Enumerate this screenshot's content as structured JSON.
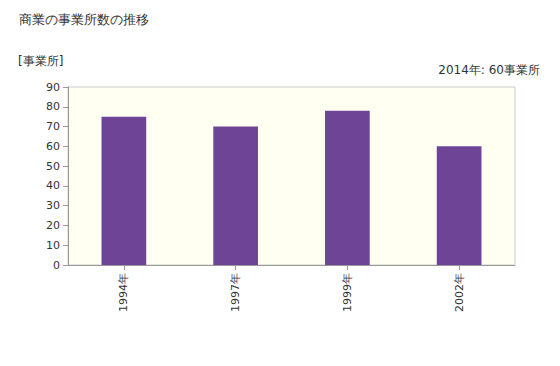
{
  "chart_data": {
    "type": "bar",
    "title": "商業の事業所数の推移",
    "y_label": "[事業所]",
    "annotation": "2014年: 60事業所",
    "categories": [
      "1994年",
      "1997年",
      "1999年",
      "2002年"
    ],
    "values": [
      75,
      70,
      78,
      60
    ],
    "color": "#6e4596",
    "ylim": [
      0,
      90
    ],
    "yticks": [
      0,
      10,
      20,
      30,
      40,
      50,
      60,
      70,
      80,
      90
    ],
    "grid": false
  }
}
